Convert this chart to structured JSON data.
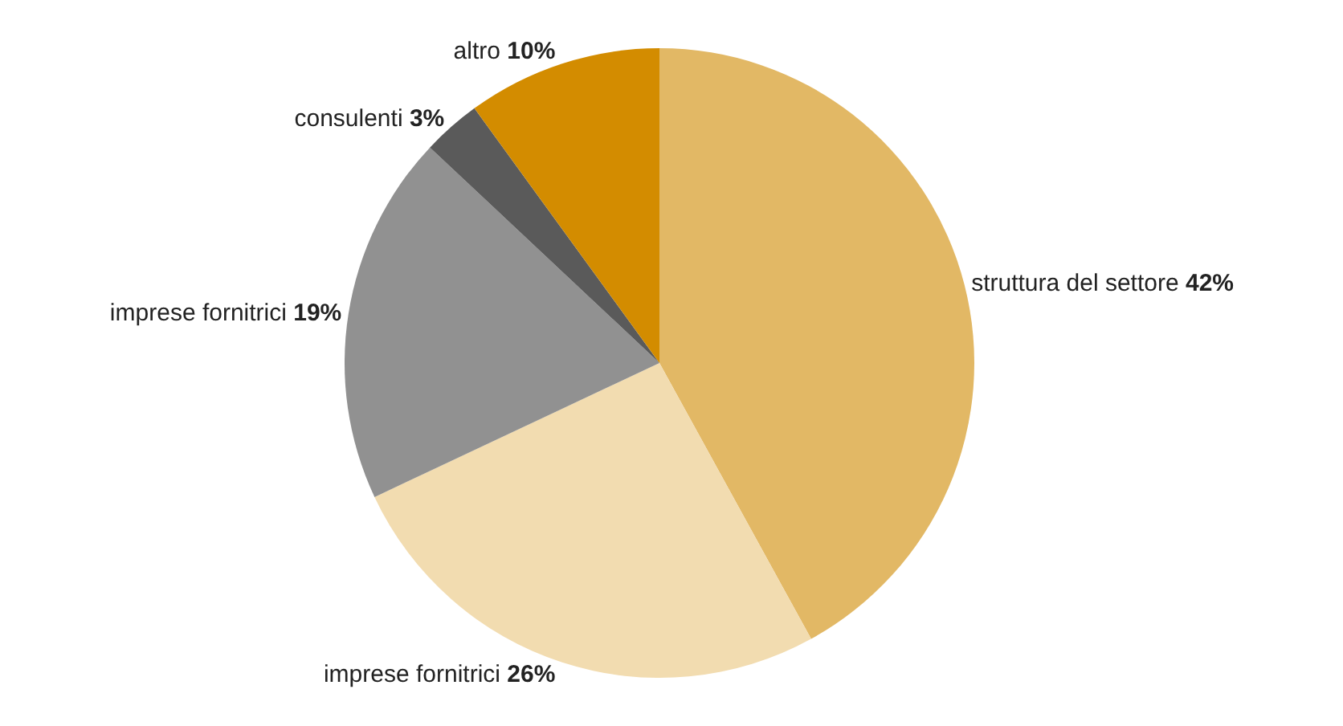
{
  "chart_data": {
    "type": "pie",
    "categories": [
      "struttura del settore",
      "imprese fornitrici",
      "imprese fornitrici",
      "consulenti",
      "altro"
    ],
    "values": [
      42,
      26,
      19,
      3,
      10
    ],
    "value_labels": [
      "42%",
      "26%",
      "19%",
      "3%",
      "10%"
    ],
    "colors": [
      "#e2b865",
      "#f2dcb0",
      "#919191",
      "#5a5a5a",
      "#d38c00"
    ],
    "legend": false
  }
}
